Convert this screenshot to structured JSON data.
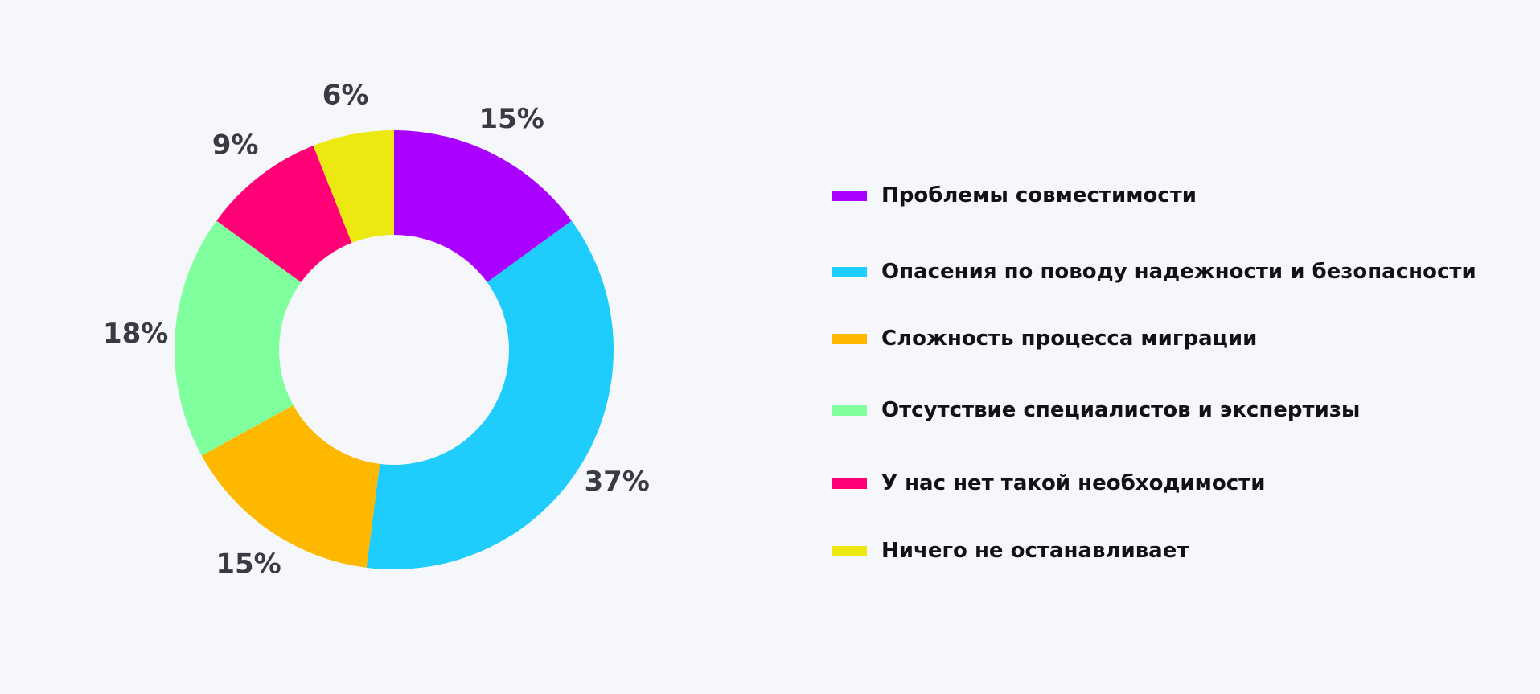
{
  "chart_data": {
    "type": "pie",
    "variant": "donut",
    "title": "",
    "categories": [
      "Проблемы совместимости",
      "Опасения по поводу надежности и безопасности",
      "Сложность процесса миграции",
      "Отсутствие специалистов и экспертизы",
      "У нас нет такой необходимости",
      "Ничего не останавливает"
    ],
    "values": [
      15,
      37,
      15,
      18,
      9,
      6
    ],
    "value_labels": [
      "15%",
      "37%",
      "15%",
      "18%",
      "9%",
      "6%"
    ],
    "colors": [
      "#aa00ff",
      "#1fcdfd",
      "#ffb800",
      "#80ff9f",
      "#ff0077",
      "#ebe812"
    ],
    "legend_position": "right",
    "start_angle": "top, clockwise"
  }
}
